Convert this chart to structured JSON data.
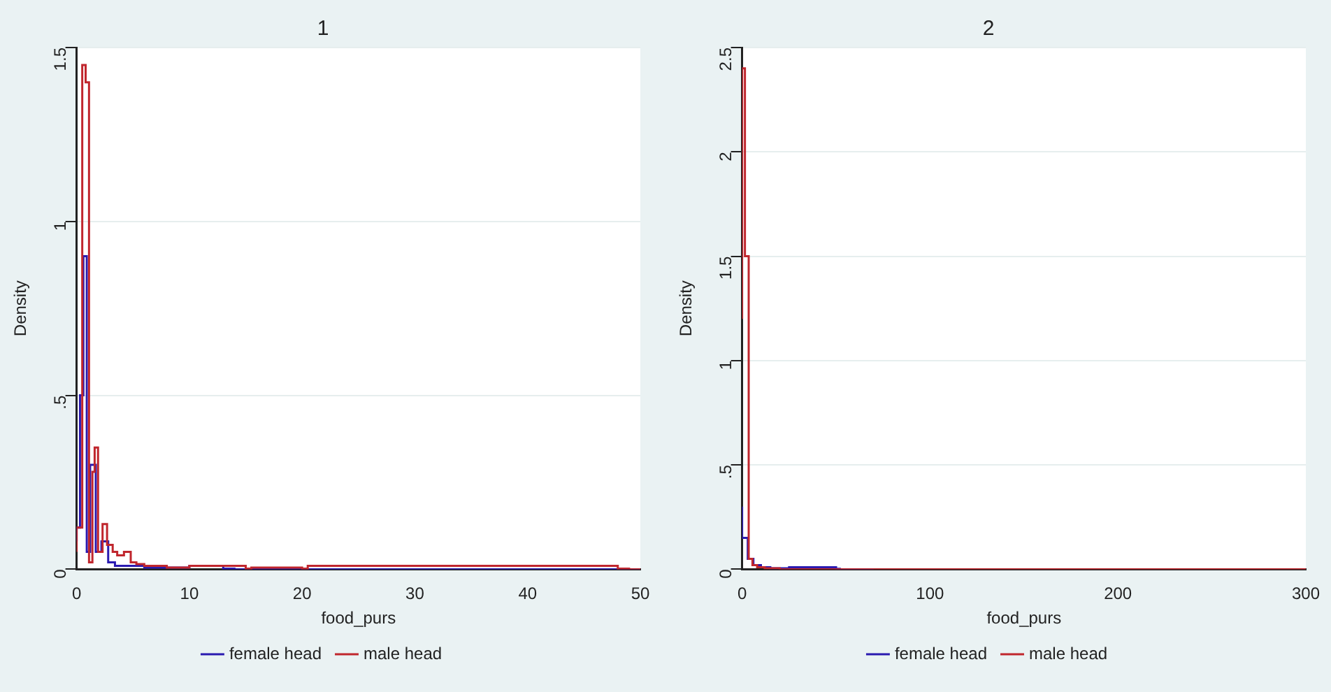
{
  "chart_data": [
    {
      "type": "step",
      "title": "1",
      "xlabel": "food_purs",
      "ylabel": "Density",
      "xlim": [
        0,
        50
      ],
      "xticks": [
        0,
        10,
        20,
        30,
        40,
        50
      ],
      "ylim": [
        0,
        1.5
      ],
      "yticks": [
        0,
        {
          "value": 0.5,
          "label": ".5"
        },
        1,
        1.5
      ],
      "grid": "y",
      "legend": "bottom",
      "series": [
        {
          "name": "male head",
          "color": "#c0262d",
          "x": [
            0,
            0.5,
            0.8,
            1.1,
            1.4,
            1.6,
            1.9,
            2.3,
            2.7,
            3.2,
            3.6,
            4.2,
            4.8,
            5.3,
            6,
            8,
            10,
            15,
            15.5,
            20,
            20.5,
            48,
            49,
            50
          ],
          "values": [
            0.05,
            0.12,
            1.45,
            1.4,
            0.02,
            0.28,
            0.35,
            0.05,
            0.13,
            0.07,
            0.05,
            0.04,
            0.05,
            0.02,
            0.015,
            0.01,
            0.005,
            0.01,
            0.002,
            0.005,
            0.002,
            0.01,
            0.002,
            0
          ]
        },
        {
          "name": "female head",
          "color": "#2a1ab0",
          "x": [
            0,
            0.3,
            0.6,
            0.9,
            1.2,
            1.7,
            2.2,
            2.8,
            3.4,
            4,
            6,
            10,
            13,
            14,
            50
          ],
          "values": [
            0.08,
            0.12,
            0.5,
            0.9,
            0.05,
            0.3,
            0.05,
            0.08,
            0.02,
            0.01,
            0.01,
            0.005,
            0.01,
            0.002,
            0
          ]
        }
      ]
    },
    {
      "type": "step",
      "title": "2",
      "xlabel": "food_purs",
      "ylabel": "Density",
      "xlim": [
        0,
        300
      ],
      "xticks": [
        0,
        100,
        200,
        300
      ],
      "ylim": [
        0,
        2.5
      ],
      "yticks": [
        0,
        {
          "value": 0.5,
          "label": ".5"
        },
        1,
        1.5,
        2,
        2.5
      ],
      "grid": "y",
      "legend": "bottom",
      "series": [
        {
          "name": "male head",
          "color": "#c0262d",
          "x": [
            0,
            1.5,
            3.5,
            5.5,
            8,
            12,
            20,
            300
          ],
          "values": [
            1.2,
            2.4,
            1.5,
            0.05,
            0.02,
            0.01,
            0.005,
            0
          ]
        },
        {
          "name": "female head",
          "color": "#2a1ab0",
          "x": [
            0,
            3,
            6,
            10,
            15,
            25,
            50,
            52,
            70
          ],
          "values": [
            0.3,
            0.15,
            0.05,
            0.02,
            0.01,
            0.005,
            0.01,
            0.002,
            0
          ]
        }
      ]
    }
  ]
}
